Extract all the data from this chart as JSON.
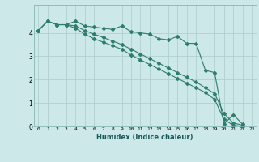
{
  "xlabel": "Humidex (Indice chaleur)",
  "line_color": "#2e7d6e",
  "bg_color": "#cce8e8",
  "grid_color": "#aacccc",
  "xlim": [
    -0.5,
    23.5
  ],
  "ylim": [
    0,
    5.2
  ],
  "yticks": [
    0,
    1,
    2,
    3,
    4
  ],
  "xticks": [
    0,
    1,
    2,
    3,
    4,
    5,
    6,
    7,
    8,
    9,
    10,
    11,
    12,
    13,
    14,
    15,
    16,
    17,
    18,
    19,
    20,
    21,
    22,
    23
  ],
  "line1_x": [
    0,
    1,
    2,
    3,
    4,
    5,
    6,
    7,
    8,
    9,
    10,
    11,
    12,
    13,
    14,
    15,
    16,
    17,
    18,
    19,
    20,
    21,
    22
  ],
  "line1_y": [
    4.1,
    4.5,
    4.35,
    4.35,
    4.5,
    4.3,
    4.25,
    4.2,
    4.15,
    4.3,
    4.05,
    4.0,
    3.95,
    3.75,
    3.7,
    3.85,
    3.55,
    3.55,
    2.4,
    2.3,
    0.1,
    0.5,
    0.1
  ],
  "line2_x": [
    0,
    1,
    2,
    3,
    4,
    5,
    6,
    7,
    8,
    9,
    10,
    11,
    12,
    13,
    14,
    15,
    16,
    17,
    18,
    19,
    20,
    21,
    22
  ],
  "line2_y": [
    4.1,
    4.5,
    4.35,
    4.35,
    4.3,
    4.1,
    3.95,
    3.8,
    3.65,
    3.5,
    3.3,
    3.1,
    2.9,
    2.7,
    2.5,
    2.3,
    2.1,
    1.9,
    1.65,
    1.4,
    0.55,
    0.15,
    0.05
  ],
  "line3_x": [
    0,
    1,
    2,
    3,
    4,
    5,
    6,
    7,
    8,
    9,
    10,
    11,
    12,
    13,
    14,
    15,
    16,
    17,
    18,
    19,
    20,
    21,
    22
  ],
  "line3_y": [
    4.1,
    4.5,
    4.35,
    4.35,
    4.2,
    3.95,
    3.75,
    3.6,
    3.45,
    3.3,
    3.05,
    2.85,
    2.65,
    2.45,
    2.25,
    2.05,
    1.85,
    1.65,
    1.45,
    1.15,
    0.3,
    0.05,
    0.0
  ]
}
